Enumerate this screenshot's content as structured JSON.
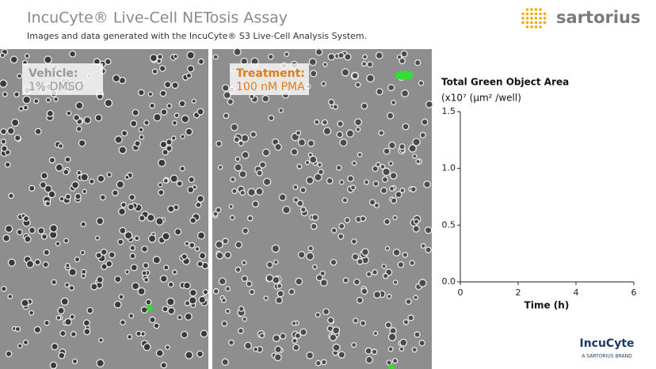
{
  "header": {
    "title": "IncuCyte® Live-Cell NETosis Assay",
    "subtitle": "Images and data generated with the IncuCyte® S3 Live-Cell Analysis System.",
    "logo": "sartorius"
  },
  "panels": [
    {
      "label": "Vehicle:",
      "detail": "1% DMSO"
    },
    {
      "label": "Treatment:",
      "detail": "100 nM PMA"
    }
  ],
  "chart_data": {
    "type": "line",
    "title": "Total Green Object Area",
    "ylabel": "(x10⁷ (µm² /well)",
    "xlabel": "Time (h)",
    "xlim": [
      0,
      6
    ],
    "xticks": [
      0,
      2,
      4,
      6
    ],
    "ylim": [
      0,
      1.5
    ],
    "yticks": [
      {
        "value": 0,
        "label": "0.0"
      },
      0.5,
      {
        "value": 1,
        "label": "1.0"
      },
      1.5
    ]
  },
  "footer": {
    "brand": "IncuCyte",
    "tagline": "A SARTORIUS BRAND"
  }
}
